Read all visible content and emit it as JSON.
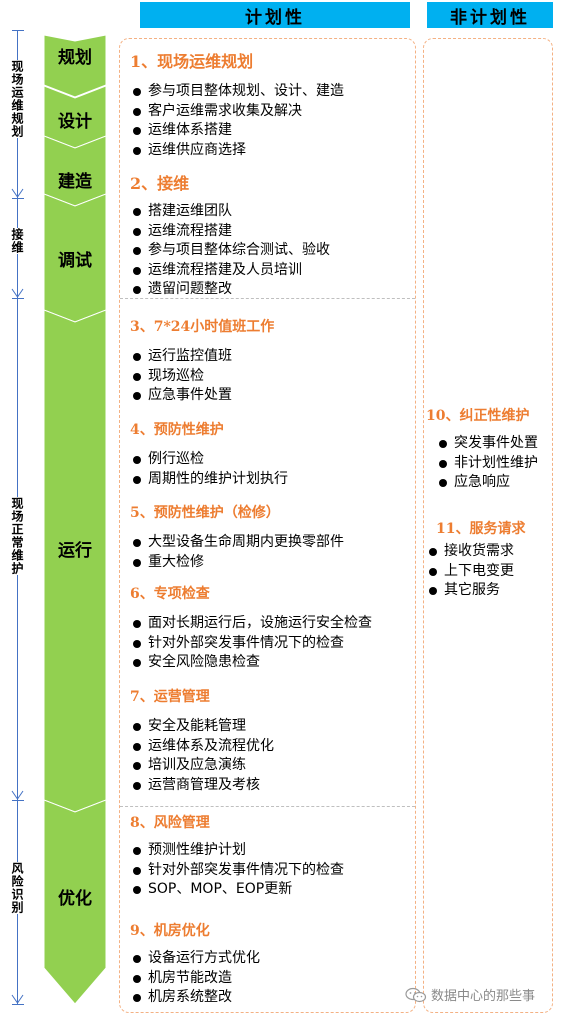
{
  "headers": {
    "planned": "计划性",
    "unplanned": "非计划性"
  },
  "phases": [
    {
      "label": "现场运维规划"
    },
    {
      "label": "接维"
    },
    {
      "label": "现场正常维护"
    },
    {
      "label": "风险识别"
    }
  ],
  "stages": [
    {
      "label": "规划"
    },
    {
      "label": "设计"
    },
    {
      "label": "建造"
    },
    {
      "label": "调试"
    },
    {
      "label": "运行"
    },
    {
      "label": "优化"
    }
  ],
  "sections": [
    {
      "title": "1、现场运维规划",
      "items": [
        "参与项目整体规划、设计、建造",
        "客户运维需求收集及解决",
        "运维体系搭建",
        "运维供应商选择"
      ]
    },
    {
      "title": "2、接维",
      "items": [
        "搭建运维团队",
        "运维流程搭建",
        "参与项目整体综合测试、验收",
        "运维流程搭建及人员培训",
        "遗留问题整改"
      ]
    },
    {
      "title": "3、7*24小时值班工作",
      "items": [
        "运行监控值班",
        "现场巡检",
        "应急事件处置"
      ]
    },
    {
      "title": "4、预防性维护",
      "items": [
        "例行巡检",
        "周期性的维护计划执行"
      ]
    },
    {
      "title": "5、预防性维护（检修）",
      "items": [
        "大型设备生命周期内更换零部件",
        "重大检修"
      ]
    },
    {
      "title": "6、专项检查",
      "items": [
        "面对长期运行后，设施运行安全检查",
        "针对外部突发事件情况下的检查",
        "安全风险隐患检查"
      ]
    },
    {
      "title": "7、运营管理",
      "items": [
        "安全及能耗管理",
        "运维体系及流程优化",
        "培训及应急演练",
        "运营商管理及考核"
      ]
    },
    {
      "title": "8、风险管理",
      "items": [
        "预测性维护计划",
        "针对外部突发事件情况下的检查",
        "SOP、MOP、EOP更新"
      ]
    },
    {
      "title": "9、机房优化",
      "items": [
        "设备运行方式优化",
        "机房节能改造",
        "机房系统整改"
      ]
    },
    {
      "title": "10、纠正性维护",
      "items": [
        "突发事件处置",
        "非计划性维护",
        "应急响应"
      ]
    },
    {
      "title": "11、服务请求",
      "items": [
        "接收货需求",
        "上下电变更",
        "其它服务"
      ]
    }
  ],
  "watermark": "数据中心的那些事",
  "colors": {
    "header": "#00b0f0",
    "stage_green": "#92d050",
    "title_orange": "#ed7d31",
    "box_border": "#f4b183",
    "axis_blue": "#4472c4"
  }
}
